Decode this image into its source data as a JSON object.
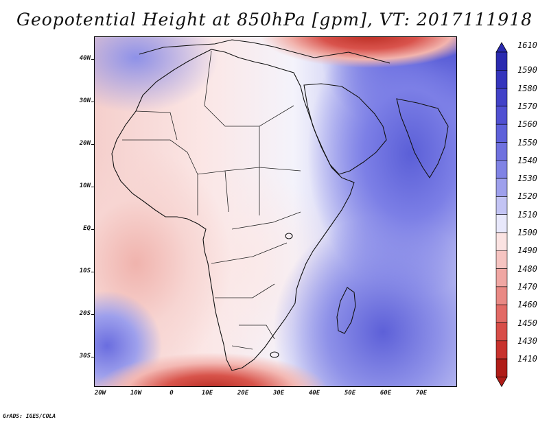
{
  "title": "Geopotential Height at 850hPa [gpm], VT: 2017111918",
  "map": {
    "lat_labels": [
      "40N",
      "30N",
      "20N",
      "10N",
      "EQ",
      "10S",
      "20S",
      "30S"
    ],
    "lon_labels": [
      "20W",
      "10W",
      "0",
      "10E",
      "20E",
      "30E",
      "40E",
      "50E",
      "60E",
      "70E"
    ]
  },
  "colorbar": {
    "levels": [
      "1610",
      "1590",
      "1580",
      "1570",
      "1560",
      "1550",
      "1540",
      "1530",
      "1520",
      "1510",
      "1500",
      "1490",
      "1480",
      "1470",
      "1460",
      "1450",
      "1430",
      "1410"
    ],
    "colors": [
      "#2a2ab0",
      "#3535bd",
      "#4242c8",
      "#5050d2",
      "#5e61da",
      "#6f71df",
      "#8083e5",
      "#9ea0ec",
      "#c3c4f4",
      "#e8e8fb",
      "#fbe3e2",
      "#f6c4c1",
      "#f0a7a3",
      "#e98984",
      "#e26a65",
      "#d84d48",
      "#c8322d",
      "#b01d18"
    ]
  },
  "credit": "GrADS: IGES/COLA"
}
